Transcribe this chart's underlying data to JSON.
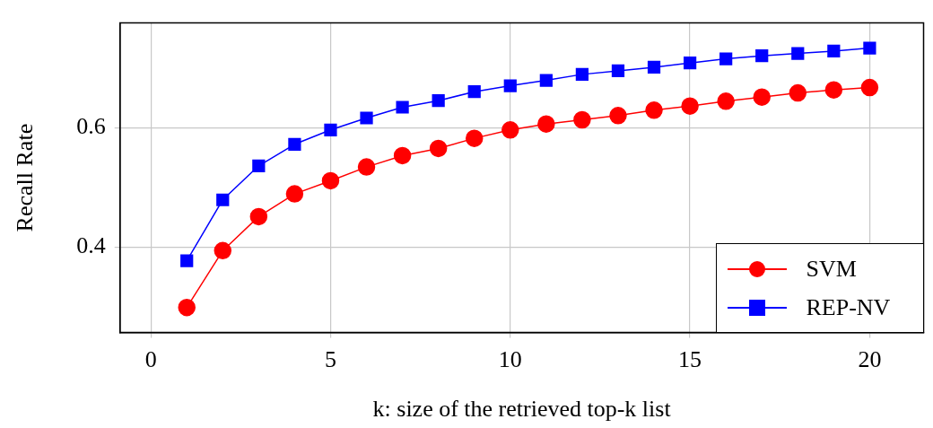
{
  "chart_data": {
    "type": "line",
    "xlabel": "k: size of the retrieved top-k list",
    "ylabel": "Recall Rate",
    "x": [
      1,
      2,
      3,
      4,
      5,
      6,
      7,
      8,
      9,
      10,
      11,
      12,
      13,
      14,
      15,
      16,
      17,
      18,
      19,
      20
    ],
    "series": [
      {
        "name": "SVM",
        "color": "#ff0000",
        "marker": "circle",
        "values": [
          0.299,
          0.394,
          0.451,
          0.489,
          0.511,
          0.534,
          0.553,
          0.565,
          0.582,
          0.596,
          0.606,
          0.613,
          0.62,
          0.629,
          0.636,
          0.644,
          0.651,
          0.658,
          0.663,
          0.667
        ]
      },
      {
        "name": "REP-NV",
        "color": "#0000ff",
        "marker": "square",
        "values": [
          0.377,
          0.479,
          0.536,
          0.572,
          0.596,
          0.616,
          0.634,
          0.645,
          0.66,
          0.67,
          0.679,
          0.689,
          0.695,
          0.701,
          0.708,
          0.715,
          0.72,
          0.724,
          0.728,
          0.733
        ]
      }
    ],
    "xlim": [
      -0.86,
      21.5
    ],
    "xticks": [
      0,
      5,
      10,
      15,
      20
    ],
    "ylim": [
      0.257,
      0.775
    ],
    "yticks": [
      0.4,
      0.6
    ],
    "grid": true,
    "legend": "bottom right",
    "line_style": "solid"
  }
}
